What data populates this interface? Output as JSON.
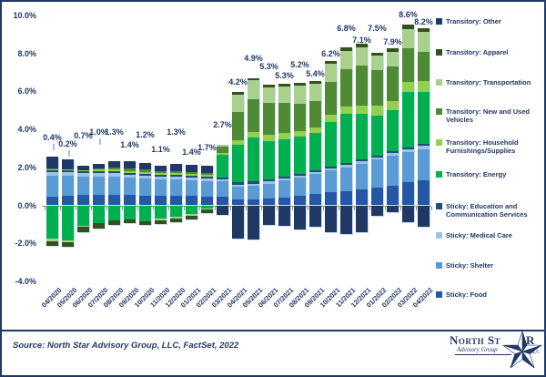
{
  "chart_data": {
    "type": "bar",
    "stacked": true,
    "title": "",
    "xlabel": "",
    "ylabel": "",
    "value_format": "percent",
    "gridlines": false,
    "legend_position": "right",
    "ylim": [
      -4,
      10
    ],
    "y_ticks": [
      "10.0%",
      "8.0%",
      "6.0%",
      "4.0%",
      "2.0%",
      "0.0%",
      "-2.0%",
      "-4.0%"
    ],
    "categories": [
      "04/2020",
      "05/2020",
      "06/2020",
      "07/2020",
      "08/2020",
      "09/2020",
      "10/2020",
      "11/2020",
      "12/2020",
      "01/2021",
      "02/2021",
      "03/2021",
      "04/2021",
      "05/2021",
      "06/2021",
      "07/2021",
      "08/2021",
      "09/2021",
      "10/2021",
      "11/2021",
      "12/2021",
      "01/2022",
      "02/2022",
      "03/2022",
      "04/2022"
    ],
    "totals_labels": [
      "0.4%",
      "0.2%",
      "0.7%",
      "1.0%",
      "1.3%",
      "1.4%",
      "1.2%",
      "1.1%",
      "1.3%",
      "1.4%",
      "1.7%",
      "2.7%",
      "4.2%",
      "4.9%",
      "5.3%",
      "5.3%",
      "5.2%",
      "5.4%",
      "6.2%",
      "6.8%",
      "7.1%",
      "7.5%",
      "7.9%",
      "8.6%",
      "8.2%"
    ],
    "totals_values": [
      0.4,
      0.2,
      0.7,
      1.0,
      1.3,
      1.4,
      1.2,
      1.1,
      1.3,
      1.4,
      1.7,
      2.7,
      4.2,
      4.9,
      5.3,
      5.3,
      5.2,
      5.4,
      6.2,
      6.8,
      7.1,
      7.5,
      7.9,
      8.6,
      8.2
    ],
    "series_stack_order": "bottom_to_top",
    "series": [
      {
        "name": "Sticky: Food",
        "color": "#2457A5",
        "values": [
          0.45,
          0.5,
          0.55,
          0.55,
          0.55,
          0.55,
          0.5,
          0.5,
          0.5,
          0.5,
          0.45,
          0.45,
          0.3,
          0.3,
          0.35,
          0.4,
          0.5,
          0.6,
          0.7,
          0.75,
          0.85,
          0.95,
          1.05,
          1.2,
          1.3
        ]
      },
      {
        "name": "Sticky: Shelter",
        "color": "#5B9BD5",
        "values": [
          1.1,
          1.05,
          0.95,
          0.95,
          0.95,
          0.9,
          0.9,
          0.85,
          0.85,
          0.8,
          0.8,
          0.8,
          0.7,
          0.75,
          0.8,
          0.9,
          0.95,
          1.05,
          1.15,
          1.25,
          1.35,
          1.45,
          1.55,
          1.6,
          1.65
        ]
      },
      {
        "name": "Sticky: Medical Care",
        "color": "#9DC3E6",
        "values": [
          0.2,
          0.2,
          0.2,
          0.2,
          0.2,
          0.15,
          0.15,
          0.15,
          0.15,
          0.15,
          0.15,
          0.1,
          0.1,
          0.1,
          0.1,
          0.1,
          0.1,
          0.1,
          0.1,
          0.12,
          0.12,
          0.13,
          0.14,
          0.15,
          0.18
        ]
      },
      {
        "name": "Sticky: Education and Communication Services",
        "color": "#1F4E79",
        "values": [
          0.1,
          0.1,
          0.1,
          0.1,
          0.1,
          0.1,
          0.1,
          0.1,
          0.1,
          0.1,
          0.1,
          0.1,
          0.1,
          0.1,
          0.1,
          0.1,
          0.1,
          0.1,
          0.1,
          0.1,
          0.1,
          0.1,
          0.1,
          0.1,
          0.1
        ]
      },
      {
        "name": "Transitory: Energy",
        "color": "#00B050",
        "values": [
          -1.75,
          -1.85,
          -1.1,
          -0.95,
          -0.8,
          -0.75,
          -0.85,
          -0.7,
          -0.6,
          -0.45,
          -0.15,
          1.2,
          2.0,
          2.3,
          2.05,
          2.0,
          1.95,
          1.95,
          2.35,
          2.6,
          2.4,
          2.1,
          2.15,
          2.9,
          2.75
        ]
      },
      {
        "name": "Transitory: Household Furnishings/Supplies",
        "color": "#92D050",
        "values": [
          0.05,
          0.05,
          0.05,
          0.1,
          0.1,
          0.1,
          0.1,
          0.1,
          0.1,
          0.1,
          0.1,
          0.1,
          0.25,
          0.3,
          0.3,
          0.3,
          0.3,
          0.3,
          0.35,
          0.4,
          0.45,
          0.5,
          0.52,
          0.55,
          0.55
        ]
      },
      {
        "name": "Transitory: New and Used Vehicles",
        "color": "#4F8A35",
        "values": [
          0.05,
          0.0,
          0.0,
          0.05,
          0.1,
          0.15,
          0.15,
          0.1,
          0.1,
          0.1,
          0.1,
          0.35,
          1.45,
          1.75,
          1.7,
          1.6,
          1.45,
          1.4,
          1.75,
          1.95,
          2.1,
          1.9,
          1.8,
          1.75,
          1.55
        ]
      },
      {
        "name": "Transitory: Transportation",
        "color": "#A9D18E",
        "values": [
          -0.15,
          -0.1,
          -0.05,
          0.0,
          0.0,
          0.0,
          0.0,
          -0.1,
          -0.1,
          -0.1,
          -0.05,
          0.1,
          0.95,
          1.0,
          0.8,
          0.85,
          0.95,
          0.9,
          0.95,
          0.95,
          0.95,
          0.77,
          0.79,
          1.05,
          1.07
        ]
      },
      {
        "name": "Transitory: Apparel",
        "color": "#33511D",
        "values": [
          -0.25,
          -0.25,
          -0.25,
          -0.25,
          -0.25,
          -0.2,
          -0.2,
          -0.2,
          -0.2,
          -0.2,
          -0.2,
          0.0,
          0.1,
          0.1,
          0.15,
          0.15,
          0.15,
          0.15,
          0.15,
          0.18,
          0.18,
          0.15,
          0.15,
          0.2,
          0.2
        ]
      },
      {
        "name": "Transitory: Other",
        "color": "#1F3864",
        "values": [
          0.6,
          0.5,
          0.25,
          0.25,
          0.35,
          0.4,
          0.35,
          0.3,
          0.4,
          0.4,
          0.4,
          -0.5,
          -1.75,
          -1.8,
          -1.05,
          -1.1,
          -1.25,
          -1.15,
          -1.4,
          -1.5,
          -1.4,
          -0.55,
          -0.35,
          -0.9,
          -1.15
        ]
      }
    ],
    "legend_top_to_bottom": [
      "Transitory: Other",
      "Transitory: Apparel",
      "Transitory: Transportation",
      "Transitory: New and Used Vehicles",
      "Transitory: Household Furnishings/Supplies",
      "Transitory: Energy",
      "Sticky: Education and Communication Services",
      "Sticky: Medical Care",
      "Sticky: Shelter",
      "Sticky: Food"
    ]
  },
  "footer": {
    "source_text": "Source: North Star Advisory Group, LLC, FactSet, 2022"
  },
  "logo": {
    "name_left": "North St",
    "name_right": "R",
    "subtitle": "Advisory Group",
    "suffix": "LLC"
  },
  "colors": {
    "text_navy": "#1F3864",
    "axis_gray": "#8d8d8d",
    "border_navy": "#1F3864",
    "leader_blue": "#9DC3E6"
  }
}
